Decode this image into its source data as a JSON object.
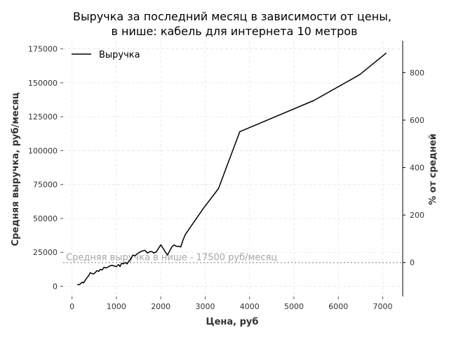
{
  "chart_data": {
    "type": "line",
    "title_line1": "Выручка за последний месяц в зависимости от цены,",
    "title_line2": "в нише: кабель для интернета 10 метров",
    "xlabel": "Цена, руб",
    "ylabel": "Средняя выручка, руб/месяц",
    "y2label": "% от средней",
    "xlim": [
      -200,
      7450
    ],
    "ylim": [
      -7500,
      181000
    ],
    "x_ticks": [
      0,
      1000,
      2000,
      3000,
      4000,
      5000,
      6000,
      7000
    ],
    "y_ticks": [
      0,
      25000,
      50000,
      75000,
      100000,
      125000,
      150000,
      175000
    ],
    "y2_ticks": [
      0,
      200,
      400,
      600,
      800
    ],
    "grid": true,
    "legend_position": "top-left",
    "colors": {
      "line": "#000000",
      "average": "#a6a6a6",
      "grid": "#e5e5e5"
    },
    "average": {
      "value": 17500,
      "label": "Средняя выручка в нише - 17500 руб/месяц"
    },
    "series": [
      {
        "name": "Выручка",
        "x": [
          120,
          180,
          230,
          260,
          300,
          340,
          380,
          410,
          440,
          480,
          520,
          560,
          600,
          640,
          680,
          720,
          760,
          800,
          850,
          900,
          950,
          1000,
          1050,
          1080,
          1120,
          1160,
          1200,
          1240,
          1280,
          1320,
          1370,
          1420,
          1470,
          1520,
          1580,
          1640,
          1700,
          1750,
          1800,
          1850,
          1900,
          1950,
          2000,
          2050,
          2100,
          2150,
          2200,
          2250,
          2300,
          2350,
          2400,
          2450,
          2500,
          2550,
          2950,
          3300,
          3780,
          5450,
          6480,
          7080
        ],
        "y": [
          1000,
          1500,
          3000,
          2500,
          4500,
          6500,
          8000,
          10000,
          9500,
          9000,
          10000,
          11500,
          11000,
          12500,
          12000,
          14000,
          13500,
          14000,
          15000,
          15500,
          15000,
          14500,
          16000,
          14500,
          17000,
          16500,
          17500,
          16500,
          18500,
          20000,
          23000,
          22500,
          24000,
          25000,
          26000,
          26500,
          24500,
          25500,
          25500,
          24500,
          25500,
          28000,
          30500,
          28000,
          25500,
          23000,
          26000,
          29000,
          30500,
          29500,
          29500,
          29000,
          34000,
          38000,
          57000,
          72000,
          114000,
          137000,
          156000,
          172000
        ]
      }
    ]
  }
}
